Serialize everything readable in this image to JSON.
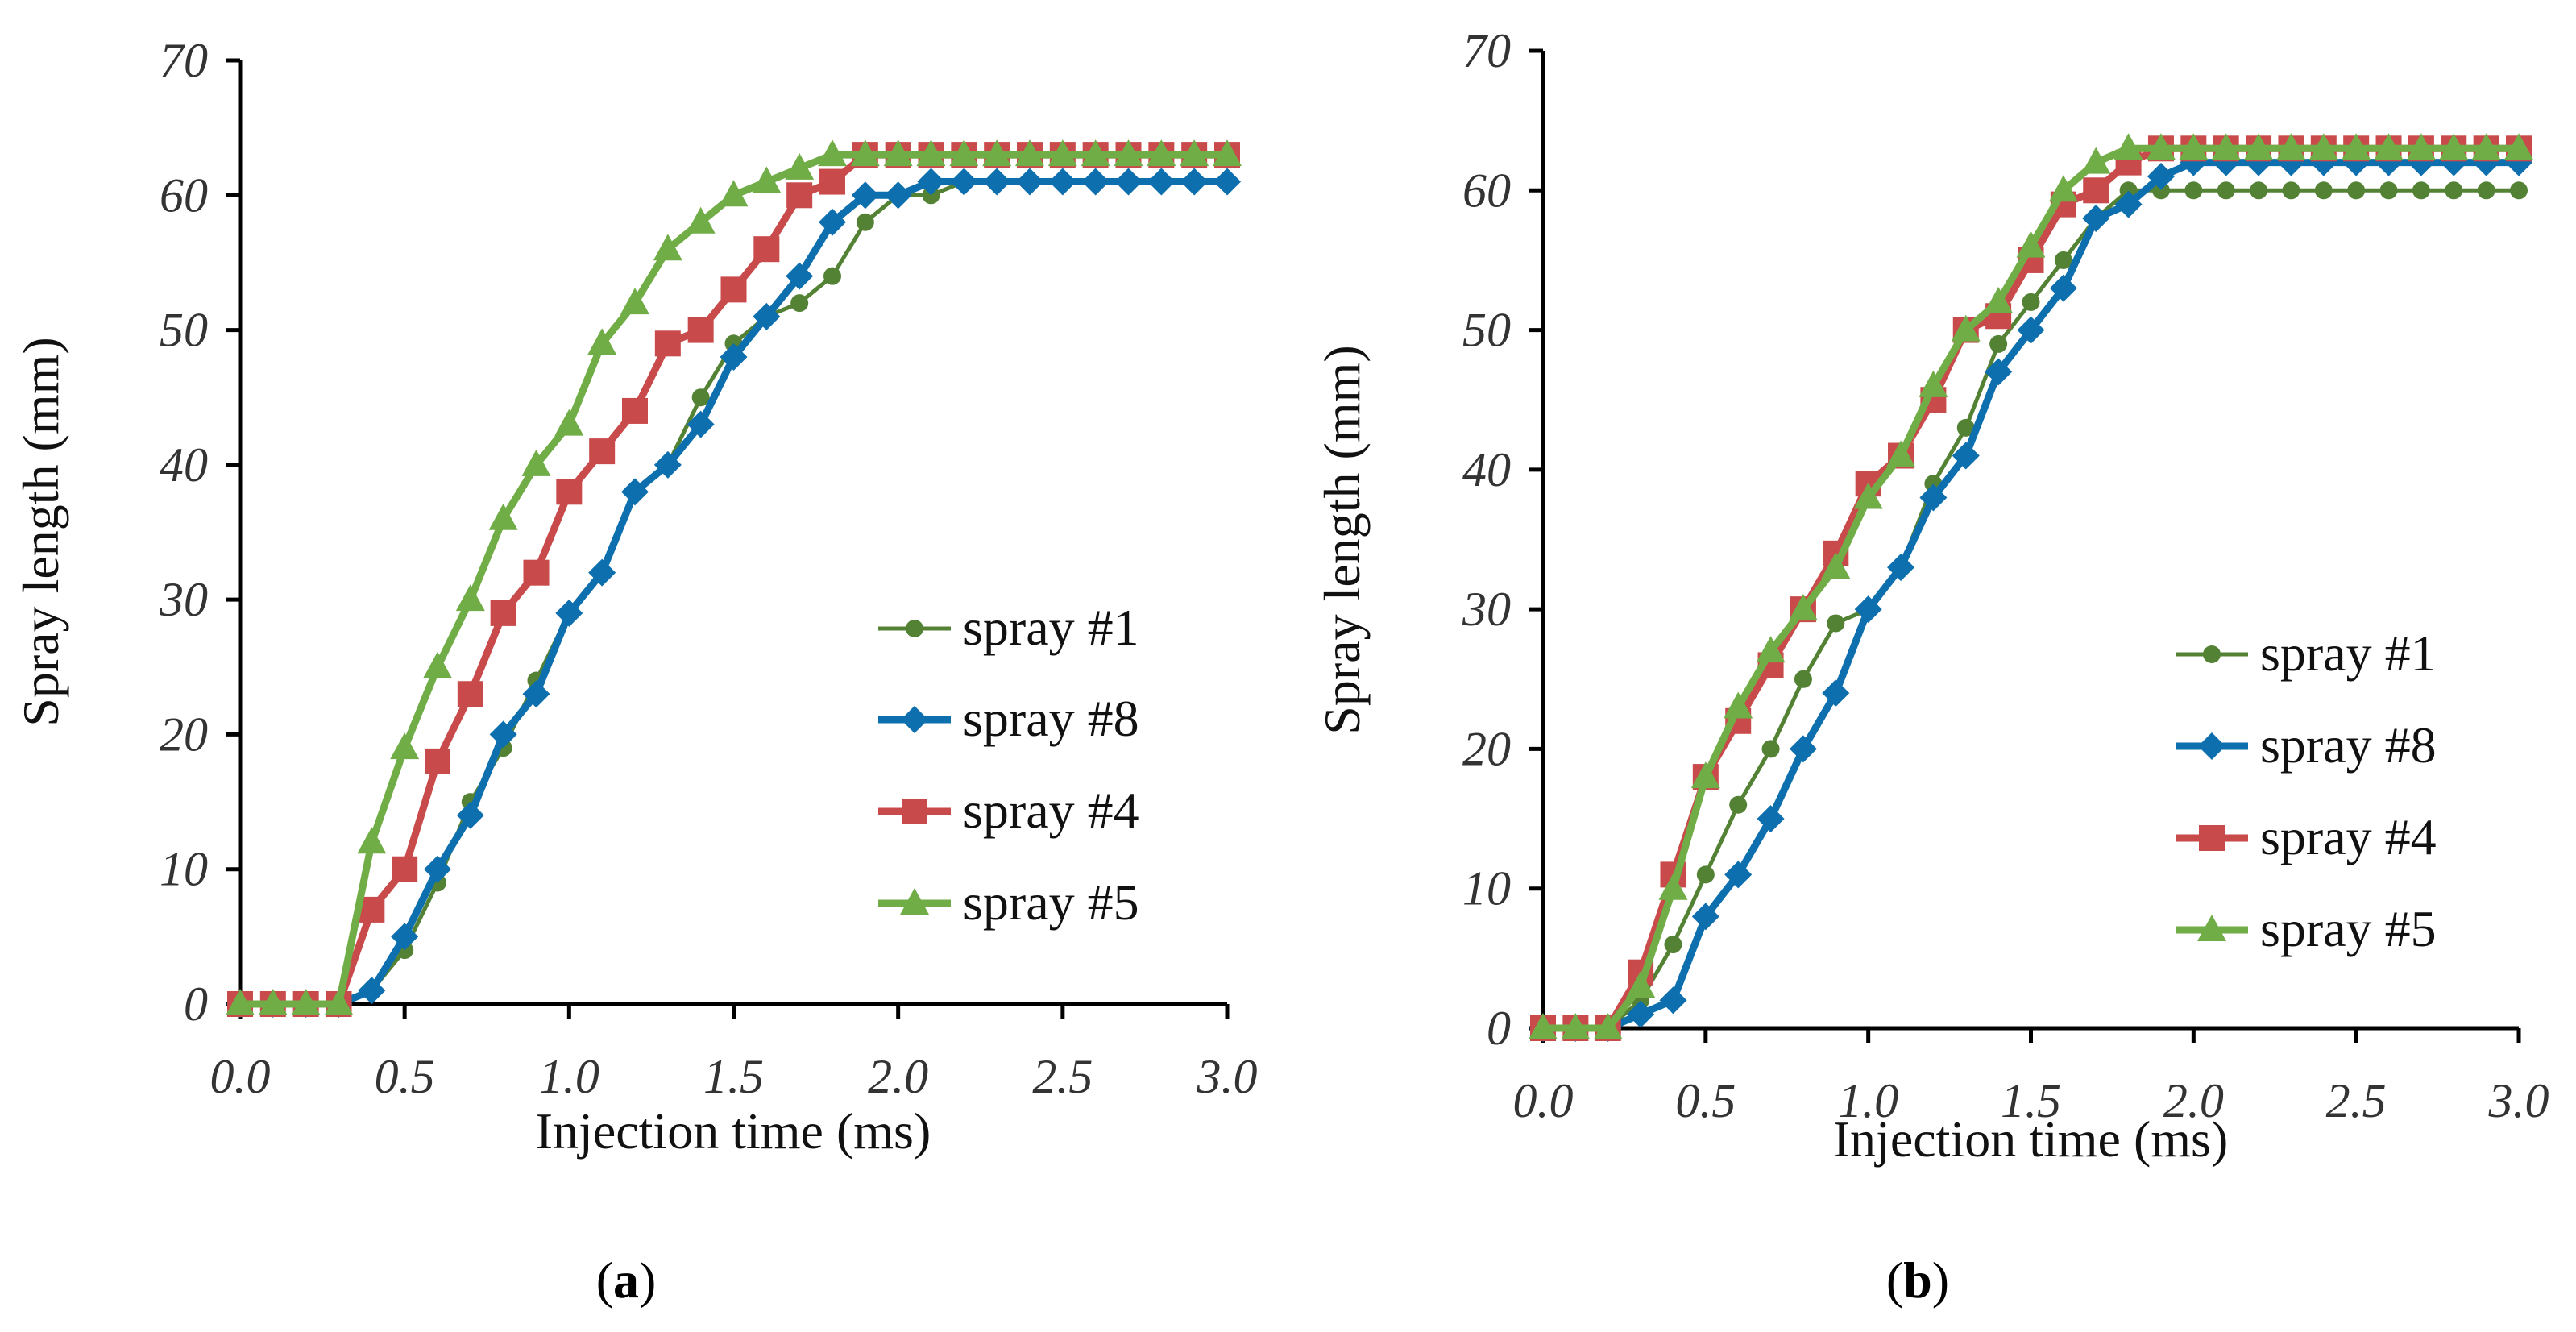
{
  "chart_data": [
    {
      "type": "line",
      "panel_label": "a",
      "xlabel": "Injection time (ms)",
      "ylabel": "Spray length (mm)",
      "xlim": [
        0,
        3.0
      ],
      "ylim": [
        0,
        70
      ],
      "xticks": [
        "0.0",
        "0.5",
        "1.0",
        "1.5",
        "2.0",
        "2.5",
        "3.0"
      ],
      "yticks": [
        "0",
        "10",
        "20",
        "30",
        "40",
        "50",
        "60",
        "70"
      ],
      "grid": false,
      "legend_position": "right",
      "x": [
        0,
        0.1,
        0.2,
        0.3,
        0.4,
        0.5,
        0.6,
        0.7,
        0.8,
        0.9,
        1.0,
        1.1,
        1.2,
        1.3,
        1.4,
        1.5,
        1.6,
        1.7,
        1.8,
        1.9,
        2.0,
        2.1,
        2.2,
        2.3,
        2.4,
        2.5,
        2.6,
        2.7,
        2.8,
        2.9,
        3.0
      ],
      "series": [
        {
          "name": "spray #1",
          "color": "#548235",
          "marker": "circle",
          "values": [
            0,
            0,
            0,
            0,
            1,
            4,
            9,
            15,
            19,
            24,
            29,
            32,
            38,
            40,
            45,
            49,
            51,
            52,
            54,
            58,
            60,
            60,
            61,
            61,
            61,
            61,
            61,
            61,
            61,
            61,
            61
          ]
        },
        {
          "name": "spray #8",
          "color": "#0e6fae",
          "marker": "diamond",
          "values": [
            0,
            0,
            0,
            0,
            1,
            5,
            10,
            14,
            20,
            23,
            29,
            32,
            38,
            40,
            43,
            48,
            51,
            54,
            58,
            60,
            60,
            61,
            61,
            61,
            61,
            61,
            61,
            61,
            61,
            61,
            61
          ]
        },
        {
          "name": "spray #4",
          "color": "#c94a4a",
          "marker": "square",
          "values": [
            0,
            0,
            0,
            0,
            7,
            10,
            18,
            23,
            29,
            32,
            38,
            41,
            44,
            49,
            50,
            53,
            56,
            60,
            61,
            63,
            63,
            63,
            63,
            63,
            63,
            63,
            63,
            63,
            63,
            63,
            63
          ]
        },
        {
          "name": "spray #5",
          "color": "#70ad47",
          "marker": "triangle",
          "values": [
            0,
            0,
            0,
            0,
            12,
            19,
            25,
            30,
            36,
            40,
            43,
            49,
            52,
            56,
            58,
            60,
            61,
            62,
            63,
            63,
            63,
            63,
            63,
            63,
            63,
            63,
            63,
            63,
            63,
            63,
            63
          ]
        }
      ]
    },
    {
      "type": "line",
      "panel_label": "b",
      "xlabel": "Injection time (ms)",
      "ylabel": "Spray length (mm)",
      "xlim": [
        0,
        3.0
      ],
      "ylim": [
        0,
        70
      ],
      "xticks": [
        "0.0",
        "0.5",
        "1.0",
        "1.5",
        "2.0",
        "2.5",
        "3.0"
      ],
      "yticks": [
        "0",
        "10",
        "20",
        "30",
        "40",
        "50",
        "60",
        "70"
      ],
      "grid": false,
      "legend_position": "right",
      "x": [
        0,
        0.1,
        0.2,
        0.3,
        0.4,
        0.5,
        0.6,
        0.7,
        0.8,
        0.9,
        1.0,
        1.1,
        1.2,
        1.3,
        1.4,
        1.5,
        1.6,
        1.7,
        1.8,
        1.9,
        2.0,
        2.1,
        2.2,
        2.3,
        2.4,
        2.5,
        2.6,
        2.7,
        2.8,
        2.9,
        3.0
      ],
      "series": [
        {
          "name": "spray #1",
          "color": "#548235",
          "marker": "circle",
          "values": [
            0,
            0,
            0,
            2,
            6,
            11,
            16,
            20,
            25,
            29,
            30,
            33,
            39,
            43,
            49,
            52,
            55,
            58,
            60,
            60,
            60,
            60,
            60,
            60,
            60,
            60,
            60,
            60,
            60,
            60,
            60
          ]
        },
        {
          "name": "spray #8",
          "color": "#0e6fae",
          "marker": "diamond",
          "values": [
            0,
            0,
            0,
            1,
            2,
            8,
            11,
            15,
            20,
            24,
            30,
            33,
            38,
            41,
            47,
            50,
            53,
            58,
            59,
            61,
            62,
            62,
            62,
            62,
            62,
            62,
            62,
            62,
            62,
            62,
            62
          ]
        },
        {
          "name": "spray #4",
          "color": "#c94a4a",
          "marker": "square",
          "values": [
            0,
            0,
            0,
            4,
            11,
            18,
            22,
            26,
            30,
            34,
            39,
            41,
            45,
            50,
            51,
            55,
            59,
            60,
            62,
            63,
            63,
            63,
            63,
            63,
            63,
            63,
            63,
            63,
            63,
            63,
            63
          ]
        },
        {
          "name": "spray #5",
          "color": "#70ad47",
          "marker": "triangle",
          "values": [
            0,
            0,
            0,
            3,
            10,
            18,
            23,
            27,
            30,
            33,
            38,
            41,
            46,
            50,
            52,
            56,
            60,
            62,
            63,
            63,
            63,
            63,
            63,
            63,
            63,
            63,
            63,
            63,
            63,
            63,
            63
          ]
        }
      ]
    }
  ]
}
